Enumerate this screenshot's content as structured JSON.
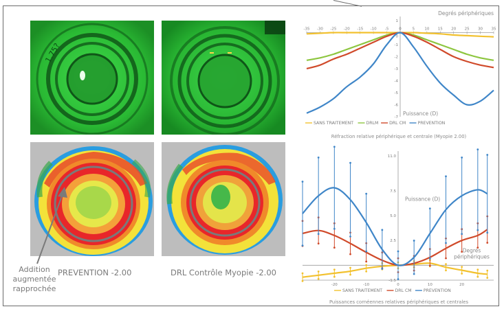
{
  "left": {
    "caption_prevention": "PREVENTION -2.00",
    "caption_drl": "DRL Contrôle Myopie -2.00",
    "annotation_lines": [
      "Addition",
      "augmentée",
      "rapprochée"
    ],
    "lens_print": "1.75?"
  },
  "colors": {
    "sans_traitement": "#f2c12e",
    "drlm": "#8dc63f",
    "drl_cm": "#d04a2a",
    "prevention": "#3f86c8",
    "fluo_green": "#2ec036",
    "topo_frame": "#bdbdbd"
  },
  "chart_data": [
    {
      "type": "line",
      "title": "Réfraction relative périphérique et centrale (Myopie 2.00)",
      "xlabel": "Degrés périphériques",
      "ylabel": "Puissance (D)",
      "xlim": [
        -35,
        35
      ],
      "ylim": [
        -7,
        1
      ],
      "x_ticks": [
        -35,
        -30,
        -25,
        -20,
        -15,
        -10,
        -5,
        0,
        5,
        10,
        15,
        20,
        25,
        30,
        35
      ],
      "y_ticks": [
        1,
        0,
        -1,
        -2,
        -3,
        -4,
        -5,
        -6,
        -7
      ],
      "legend": "bottom",
      "x": [
        -35,
        -30,
        -25,
        -20,
        -15,
        -10,
        -5,
        0,
        5,
        10,
        15,
        20,
        25,
        30,
        35
      ],
      "series": [
        {
          "name": "SANS TRAITEMENT",
          "color": "#f2c12e",
          "values": [
            -0.1,
            -0.05,
            0,
            0,
            0,
            0,
            0,
            0,
            0,
            -0.05,
            -0.1,
            -0.2,
            -0.25,
            -0.3,
            -0.35
          ]
        },
        {
          "name": "DRLM",
          "color": "#8dc63f",
          "values": [
            -2.3,
            -2.1,
            -1.8,
            -1.4,
            -1.0,
            -0.6,
            -0.2,
            0,
            -0.2,
            -0.6,
            -1.0,
            -1.4,
            -1.8,
            -2.1,
            -2.3
          ]
        },
        {
          "name": "DRL CM",
          "color": "#d04a2a",
          "values": [
            -3.0,
            -2.7,
            -2.2,
            -1.8,
            -1.3,
            -0.8,
            -0.3,
            0,
            -0.3,
            -0.8,
            -1.4,
            -2.0,
            -2.4,
            -2.7,
            -2.9
          ]
        },
        {
          "name": "PREVENTION",
          "color": "#3f86c8",
          "values": [
            -6.7,
            -6.2,
            -5.5,
            -4.5,
            -3.7,
            -2.6,
            -1.0,
            0,
            -1.2,
            -2.8,
            -4.2,
            -5.2,
            -6.0,
            -5.7,
            -4.8
          ]
        }
      ]
    },
    {
      "type": "line",
      "title": "Puissances cornéennes relatives périphériques et centrales",
      "xlabel": "Degrés périphériques",
      "ylabel": "Puissance (D)",
      "xlim": [
        -30,
        30
      ],
      "ylim": [
        -1.5,
        11.5
      ],
      "x_ticks": [
        -20,
        -10,
        0,
        10,
        20
      ],
      "y_ticks": [
        11.0,
        7.5,
        5.0,
        2.5,
        -1.5
      ],
      "legend": "bottom",
      "x": [
        -30,
        -25,
        -20,
        -15,
        -10,
        -5,
        0,
        5,
        10,
        15,
        20,
        25,
        28
      ],
      "series": [
        {
          "name": "SANS TRAITEMENT",
          "color": "#f2c12e",
          "values": [
            -1.2,
            -1.0,
            -0.8,
            -0.6,
            -0.3,
            -0.1,
            0,
            0.1,
            0.2,
            -0.2,
            -0.5,
            -0.8,
            -0.9
          ]
        },
        {
          "name": "DRL CM",
          "color": "#d04a2a",
          "values": [
            3.2,
            3.5,
            3.0,
            2.2,
            1.3,
            0.5,
            0,
            0.2,
            0.8,
            1.7,
            2.5,
            3.0,
            3.6
          ]
        },
        {
          "name": "PREVENTION",
          "color": "#3f86c8",
          "values": [
            5.2,
            7.0,
            7.8,
            6.6,
            4.3,
            1.6,
            0,
            0.8,
            3.2,
            5.6,
            7.0,
            7.6,
            7.2
          ]
        }
      ]
    }
  ]
}
